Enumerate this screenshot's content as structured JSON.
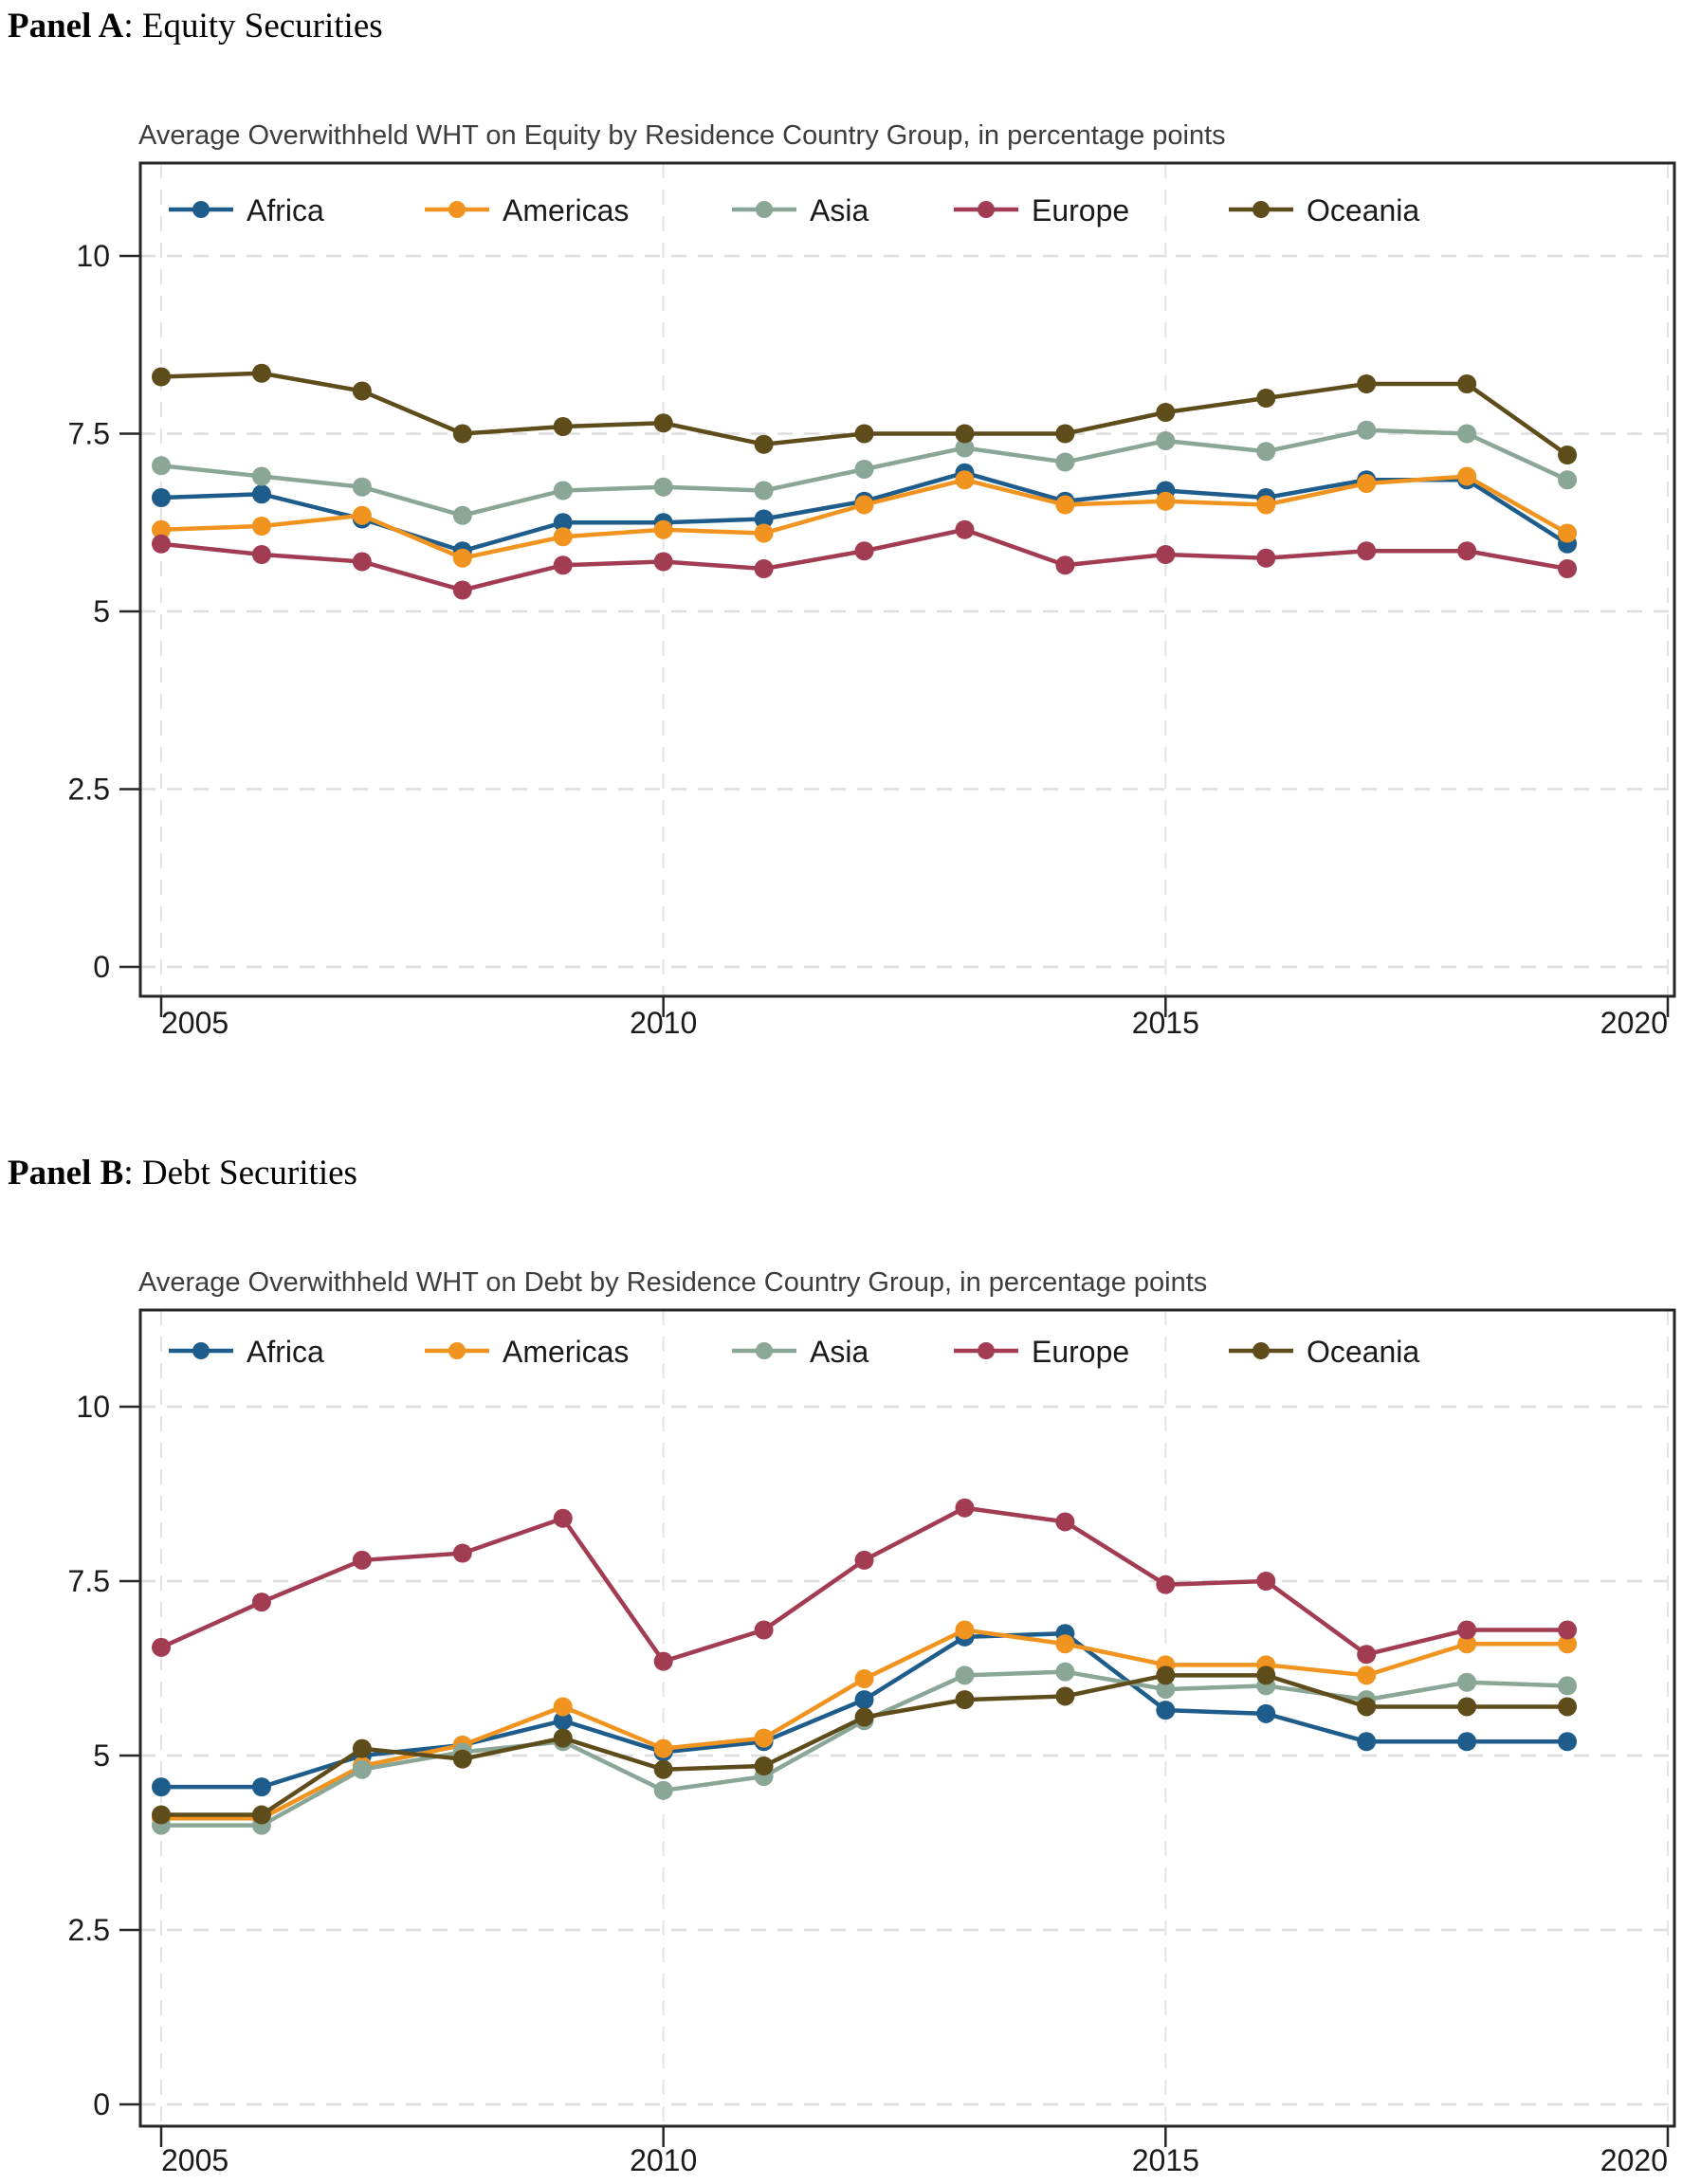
{
  "page": {
    "background": "#ffffff",
    "text_color": "#000000"
  },
  "panels": [
    {
      "heading_bold": "Panel A",
      "heading_rest": ": Equity Securities"
    },
    {
      "heading_bold": "Panel B",
      "heading_rest": ": Debt Securities"
    }
  ],
  "style_colors": {
    "africa": "#1e5c8c",
    "americas": "#f0941f",
    "asia": "#8aa696",
    "europe": "#a23c52",
    "oceania": "#5e4c1a",
    "gridline": "#dedede",
    "frame": "#262626",
    "title_text": "#3d3d3d",
    "tick_text": "#1a1a1a"
  },
  "chart_data": [
    {
      "type": "line",
      "title": "Average Overwithheld WHT on Equity by Residence Country Group, in percentage points",
      "xlabel": "",
      "ylabel": "",
      "x": [
        2005,
        2006,
        2007,
        2008,
        2009,
        2010,
        2011,
        2012,
        2013,
        2014,
        2015,
        2016,
        2017,
        2018,
        2019
      ],
      "xlim": [
        2004.8,
        2020.1
      ],
      "ylim": [
        0,
        11.2
      ],
      "xticks": [
        2005,
        2010,
        2015,
        2020
      ],
      "xtick_labels": [
        "2005",
        "2010",
        "2015",
        "2020"
      ],
      "yticks": [
        0,
        2.5,
        5,
        7.5,
        10
      ],
      "ytick_labels": [
        "0",
        "2.5",
        "5",
        "7.5",
        "10"
      ],
      "grid": "dashed",
      "legend_position": "top-inside",
      "series": [
        {
          "name": "Africa",
          "color": "#1e5c8c",
          "values": [
            6.6,
            6.65,
            6.3,
            5.85,
            6.25,
            6.25,
            6.3,
            6.55,
            6.95,
            6.55,
            6.7,
            6.6,
            6.85,
            6.85,
            5.95
          ]
        },
        {
          "name": "Americas",
          "color": "#f0941f",
          "values": [
            6.15,
            6.2,
            6.35,
            5.75,
            6.05,
            6.15,
            6.1,
            6.5,
            6.85,
            6.5,
            6.55,
            6.5,
            6.8,
            6.9,
            6.1
          ]
        },
        {
          "name": "Asia",
          "color": "#8aa696",
          "values": [
            7.05,
            6.9,
            6.75,
            6.35,
            6.7,
            6.75,
            6.7,
            7.0,
            7.3,
            7.1,
            7.4,
            7.25,
            7.55,
            7.5,
            6.85
          ]
        },
        {
          "name": "Europe",
          "color": "#a23c52",
          "values": [
            5.95,
            5.8,
            5.7,
            5.3,
            5.65,
            5.7,
            5.6,
            5.85,
            6.15,
            5.65,
            5.8,
            5.75,
            5.85,
            5.85,
            5.6
          ]
        },
        {
          "name": "Oceania",
          "color": "#5e4c1a",
          "values": [
            8.3,
            8.35,
            8.1,
            7.5,
            7.6,
            7.65,
            7.35,
            7.5,
            7.5,
            7.5,
            7.8,
            8.0,
            8.2,
            8.2,
            7.2
          ]
        }
      ]
    },
    {
      "type": "line",
      "title": "Average Overwithheld WHT on Debt by Residence Country Group, in percentage points",
      "xlabel": "",
      "ylabel": "",
      "x": [
        2005,
        2006,
        2007,
        2008,
        2009,
        2010,
        2011,
        2012,
        2013,
        2014,
        2015,
        2016,
        2017,
        2018,
        2019
      ],
      "xlim": [
        2004.8,
        2020.1
      ],
      "ylim": [
        0,
        11.2
      ],
      "xticks": [
        2005,
        2010,
        2015,
        2020
      ],
      "xtick_labels": [
        "2005",
        "2010",
        "2015",
        "2020"
      ],
      "yticks": [
        0,
        2.5,
        5,
        7.5,
        10
      ],
      "ytick_labels": [
        "0",
        "2.5",
        "5",
        "7.5",
        "10"
      ],
      "grid": "dashed",
      "legend_position": "top-inside",
      "series": [
        {
          "name": "Africa",
          "color": "#1e5c8c",
          "values": [
            4.55,
            4.55,
            5.0,
            5.15,
            5.5,
            5.05,
            5.2,
            5.8,
            6.7,
            6.75,
            5.65,
            5.6,
            5.2,
            5.2,
            5.2
          ]
        },
        {
          "name": "Americas",
          "color": "#f0941f",
          "values": [
            4.1,
            4.1,
            4.85,
            5.15,
            5.7,
            5.1,
            5.25,
            6.1,
            6.8,
            6.6,
            6.3,
            6.3,
            6.15,
            6.6,
            6.6
          ]
        },
        {
          "name": "Asia",
          "color": "#8aa696",
          "values": [
            4.0,
            4.0,
            4.8,
            5.05,
            5.2,
            4.5,
            4.7,
            5.5,
            6.15,
            6.2,
            5.95,
            6.0,
            5.8,
            6.05,
            6.0
          ]
        },
        {
          "name": "Europe",
          "color": "#a23c52",
          "values": [
            6.55,
            7.2,
            7.8,
            7.9,
            8.4,
            6.35,
            6.8,
            7.8,
            8.55,
            8.35,
            7.45,
            7.5,
            6.45,
            6.8,
            6.8
          ]
        },
        {
          "name": "Oceania",
          "color": "#5e4c1a",
          "values": [
            4.15,
            4.15,
            5.1,
            4.95,
            5.25,
            4.8,
            4.85,
            5.55,
            5.8,
            5.85,
            6.15,
            6.15,
            5.7,
            5.7,
            5.7
          ]
        }
      ]
    }
  ]
}
